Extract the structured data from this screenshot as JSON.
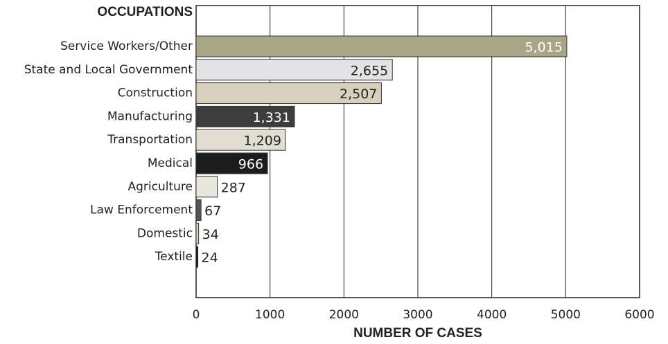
{
  "chart_data": {
    "type": "bar",
    "orientation": "horizontal",
    "ylabel": "OCCUPATIONS",
    "xlabel": "NUMBER OF CASES",
    "categories": [
      "Service Workers/Other",
      "State and Local Government",
      "Construction",
      "Manufacturing",
      "Transportation",
      "Medical",
      "Agriculture",
      "Law Enforcement",
      "Domestic",
      "Textile"
    ],
    "values": [
      5015,
      2655,
      2507,
      1331,
      1209,
      966,
      287,
      67,
      34,
      24
    ],
    "value_labels": [
      "5,015",
      "2,655",
      "2,507",
      "1,331",
      "1,209",
      "966",
      "287",
      "67",
      "34",
      "24"
    ],
    "colors": [
      "#a9a687",
      "#e3e3e5",
      "#d7d0bd",
      "#3d3d3d",
      "#e1ddd1",
      "#1c1c1c",
      "#e9e7dd",
      "#555555",
      "#d7d0bd",
      "#141414"
    ],
    "xlim": [
      0,
      6000
    ],
    "xticks": [
      0,
      1000,
      2000,
      3000,
      4000,
      5000,
      6000
    ],
    "grid": true
  }
}
